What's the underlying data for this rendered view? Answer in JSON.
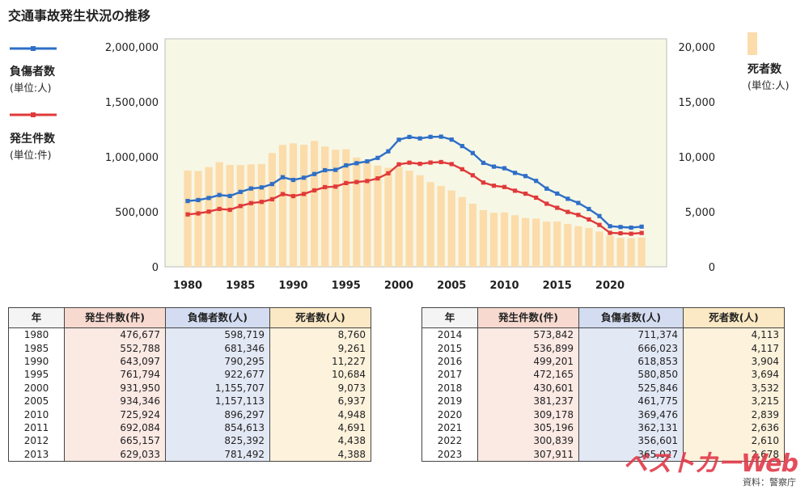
{
  "title": "交通事故発生状況の推移",
  "legend": {
    "injured": {
      "label": "負傷者数",
      "unit": "(単位:人)",
      "color": "#2e6fc7"
    },
    "accidents": {
      "label": "発生件数",
      "unit": "(単位:件)",
      "color": "#e03a3a"
    },
    "deaths": {
      "label": "死者数",
      "unit": "(単位:人)",
      "color": "#fbdcaa"
    }
  },
  "chart_data": {
    "type": "bar+line",
    "left_axis": {
      "ticks": [
        "2,000,000",
        "1,500,000",
        "1,000,000",
        "500,000",
        "0"
      ],
      "ylim": [
        0,
        2000000
      ]
    },
    "right_axis": {
      "ticks": [
        "20,000",
        "15,000",
        "10,000",
        "5,000",
        "0"
      ],
      "ylim": [
        0,
        20000
      ]
    },
    "x_ticks": [
      "1980",
      "1985",
      "1990",
      "1995",
      "2000",
      "2005",
      "2010",
      "2015",
      "2020"
    ],
    "years": [
      1980,
      1981,
      1982,
      1983,
      1984,
      1985,
      1986,
      1987,
      1988,
      1989,
      1990,
      1991,
      1992,
      1993,
      1994,
      1995,
      1996,
      1997,
      1998,
      1999,
      2000,
      2001,
      2002,
      2003,
      2004,
      2005,
      2006,
      2007,
      2008,
      2009,
      2010,
      2011,
      2012,
      2013,
      2014,
      2015,
      2016,
      2017,
      2018,
      2019,
      2020,
      2021,
      2022,
      2023
    ],
    "series": [
      {
        "name": "負傷者数",
        "axis": "left",
        "values": [
          598719,
          607346,
          626192,
          653128,
          644321,
          681346,
          712330,
          722179,
          752845,
          814832,
          790295,
          810245,
          844003,
          878633,
          881723,
          922677,
          942204,
          958925,
          990675,
          1050399,
          1155707,
          1181039,
          1167855,
          1181681,
          1183617,
          1157113,
          1098199,
          1034652,
          945703,
          911215,
          896297,
          854613,
          825392,
          781492,
          711374,
          666023,
          618853,
          580850,
          525846,
          461775,
          369476,
          362131,
          356601,
          365027
        ]
      },
      {
        "name": "発生件数",
        "axis": "left",
        "values": [
          476677,
          485578,
          502261,
          526362,
          518642,
          552788,
          579190,
          590723,
          614481,
          661363,
          643097,
          662392,
          695345,
          724678,
          729461,
          761794,
          771084,
          780401,
          803882,
          850371,
          931950,
          947253,
          936721,
          947993,
          952720,
          934346,
          887257,
          832454,
          766394,
          737637,
          725924,
          692084,
          665157,
          629033,
          573842,
          536899,
          499201,
          472165,
          430601,
          381237,
          309178,
          305196,
          300839,
          307911
        ]
      },
      {
        "name": "死者数",
        "axis": "right",
        "values": [
          8760,
          8719,
          9073,
          9520,
          9262,
          9261,
          9317,
          9347,
          10344,
          11086,
          11227,
          11105,
          11452,
          10942,
          10649,
          10684,
          9942,
          9640,
          9211,
          9006,
          9073,
          8747,
          8326,
          7702,
          7358,
          6937,
          6352,
          5744,
          5155,
          4914,
          4948,
          4691,
          4438,
          4388,
          4113,
          4117,
          3904,
          3694,
          3532,
          3215,
          2839,
          2636,
          2610,
          2678
        ]
      }
    ]
  },
  "tables": {
    "headers": [
      "年",
      "発生件数(件)",
      "負傷者数(人)",
      "死者数(人)"
    ],
    "left": [
      [
        "1980",
        "476,677",
        "598,719",
        "8,760"
      ],
      [
        "1985",
        "552,788",
        "681,346",
        "9,261"
      ],
      [
        "1990",
        "643,097",
        "790,295",
        "11,227"
      ],
      [
        "1995",
        "761,794",
        "922,677",
        "10,684"
      ],
      [
        "2000",
        "931,950",
        "1,155,707",
        "9,073"
      ],
      [
        "2005",
        "934,346",
        "1,157,113",
        "6,937"
      ],
      [
        "2010",
        "725,924",
        "896,297",
        "4,948"
      ],
      [
        "2011",
        "692,084",
        "854,613",
        "4,691"
      ],
      [
        "2012",
        "665,157",
        "825,392",
        "4,438"
      ],
      [
        "2013",
        "629,033",
        "781,492",
        "4,388"
      ]
    ],
    "right": [
      [
        "2014",
        "573,842",
        "711,374",
        "4,113"
      ],
      [
        "2015",
        "536,899",
        "666,023",
        "4,117"
      ],
      [
        "2016",
        "499,201",
        "618,853",
        "3,904"
      ],
      [
        "2017",
        "472,165",
        "580,850",
        "3,694"
      ],
      [
        "2018",
        "430,601",
        "525,846",
        "3,532"
      ],
      [
        "2019",
        "381,237",
        "461,775",
        "3,215"
      ],
      [
        "2020",
        "309,178",
        "369,476",
        "2,839"
      ],
      [
        "2021",
        "305,196",
        "362,131",
        "2,636"
      ],
      [
        "2022",
        "300,839",
        "356,601",
        "2,610"
      ],
      [
        "2023",
        "307,911",
        "365,027",
        "2,678"
      ]
    ]
  },
  "source": "資料：警察庁",
  "watermark": "ベストカーWeb"
}
